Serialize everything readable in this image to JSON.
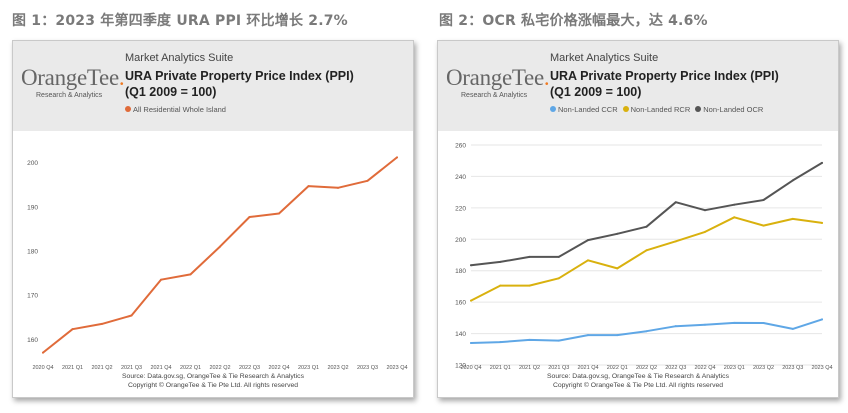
{
  "figures": [
    {
      "caption": "图 1：2023 年第四季度 URA PPI 环比增长 2.7%",
      "suite": "Market Analytics Suite",
      "logo_text": "OrangeTee.",
      "logo_sub": "Research & Analytics",
      "title_line1": "URA Private Property Price Index (PPI)",
      "title_line2": "(Q1 2009 = 100)",
      "source_line1": "Source: Data.gov.sg, OrangeTee & Tie Research & Analytics",
      "source_line2": "Copyright © OrangeTee & Tie Pte Ltd. All rights reserved"
    },
    {
      "caption": "图 2：OCR 私宅价格涨幅最大，达 4.6%",
      "suite": "Market Analytics Suite",
      "logo_text": "OrangeTee.",
      "logo_sub": "Research & Analytics",
      "title_line1": "URA Private Property Price Index (PPI)",
      "title_line2": "(Q1 2009 = 100)",
      "source_line1": "Source: Data.gov.sg, OrangeTee & Tie Research & Analytics",
      "source_line2": "Copyright © OrangeTee & Tie Pte Ltd. All rights reserved"
    }
  ],
  "chart_data": [
    {
      "type": "line",
      "title": "URA Private Property Price Index (PPI)",
      "subtitle": "(Q1 2009 = 100)",
      "categories": [
        "2020 Q4",
        "2021 Q1",
        "2021 Q2",
        "2021 Q3",
        "2021 Q4",
        "2022 Q1",
        "2022 Q2",
        "2022 Q3",
        "2022 Q4",
        "2023 Q1",
        "2023 Q2",
        "2023 Q3",
        "2023 Q4"
      ],
      "series": [
        {
          "name": "All Residential Whole Island",
          "color": "#e06b3a",
          "values": [
            157.0,
            162.3,
            163.5,
            165.4,
            173.5,
            174.7,
            181.0,
            187.7,
            188.5,
            194.7,
            194.3,
            195.9,
            201.2
          ]
        }
      ],
      "ylim": [
        156,
        204
      ],
      "yticks": [
        160,
        170,
        180,
        190,
        200
      ],
      "grid": false,
      "legend": "top-left"
    },
    {
      "type": "line",
      "title": "URA Private Property Price Index (PPI)",
      "subtitle": "(Q1 2009 = 100)",
      "categories": [
        "2020 Q4",
        "2021 Q1",
        "2021 Q2",
        "2021 Q3",
        "2021 Q4",
        "2022 Q1",
        "2022 Q2",
        "2022 Q3",
        "2022 Q4",
        "2023 Q1",
        "2023 Q2",
        "2023 Q3",
        "2023 Q4"
      ],
      "series": [
        {
          "name": "Non-Landed CCR",
          "color": "#5fa7e6",
          "values": [
            134.0,
            134.6,
            136.0,
            135.5,
            139.0,
            139.0,
            141.5,
            144.7,
            145.6,
            146.8,
            146.7,
            143.0,
            149.0
          ]
        },
        {
          "name": "Non-Landed RCR",
          "color": "#d9b10e",
          "values": [
            161.0,
            170.5,
            170.5,
            175.2,
            186.6,
            181.5,
            193.0,
            198.7,
            204.7,
            214.0,
            208.7,
            213.0,
            210.4
          ]
        },
        {
          "name": "Non-Landed OCR",
          "color": "#555555",
          "values": [
            183.5,
            185.6,
            188.8,
            188.8,
            199.5,
            203.5,
            208.0,
            223.6,
            218.5,
            222.0,
            225.0,
            237.5,
            248.6
          ]
        }
      ],
      "ylim": [
        120,
        260
      ],
      "yticks": [
        120,
        140,
        160,
        180,
        200,
        220,
        240,
        260
      ],
      "grid": true,
      "legend": "top-left"
    }
  ]
}
